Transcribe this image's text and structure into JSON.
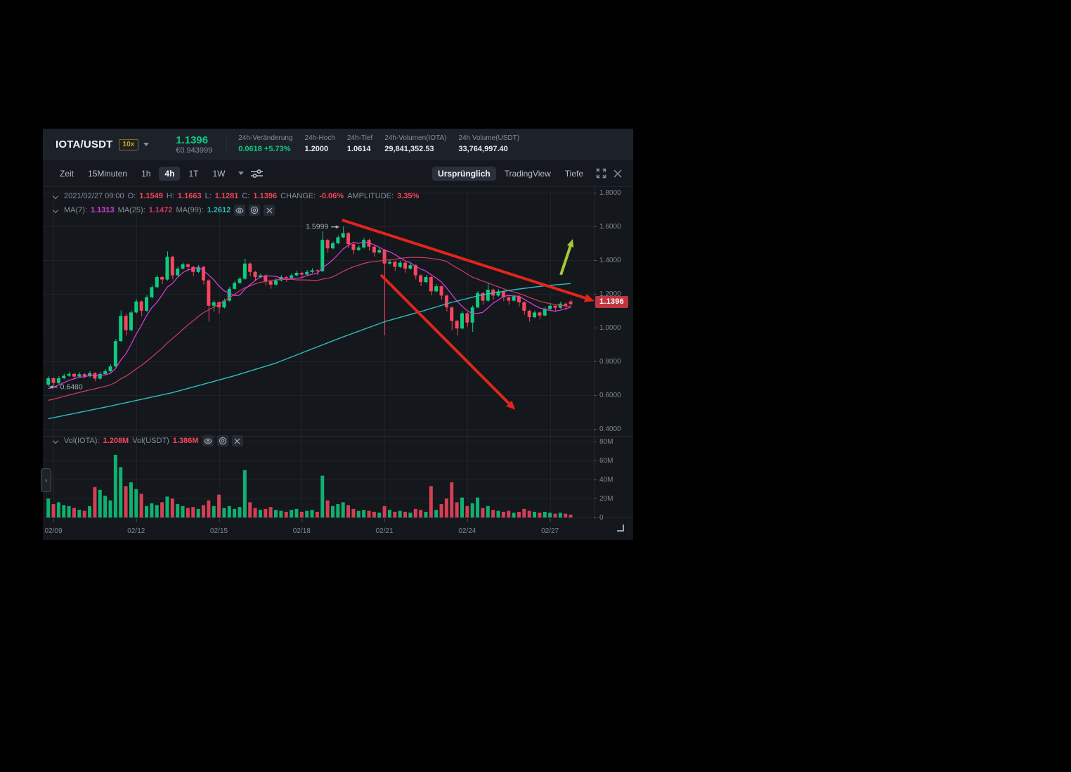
{
  "header": {
    "pair": "IOTA/USDT",
    "leverage": "10x",
    "last_price": "1.1396",
    "fiat_price": "€0.943999",
    "stats": [
      {
        "label": "24h-Veränderung",
        "value": "0.0618 +5.73%"
      },
      {
        "label": "24h-Hoch",
        "value": "1.2000"
      },
      {
        "label": "24h-Tief",
        "value": "1.0614"
      },
      {
        "label": "24h-Volumen(IOTA)",
        "value": "29,841,352.53"
      },
      {
        "label": "24h Volume(USDT)",
        "value": "33,764,997.40"
      }
    ]
  },
  "toolbar": {
    "timeframes": [
      {
        "label": "Zeit"
      },
      {
        "label": "15Minuten"
      },
      {
        "label": "1h"
      },
      {
        "label": "4h",
        "active": true
      },
      {
        "label": "1T"
      },
      {
        "label": "1W"
      }
    ],
    "views": [
      {
        "label": "Ursprünglich",
        "active": true
      },
      {
        "label": "TradingView"
      },
      {
        "label": "Tiefe"
      }
    ]
  },
  "info": {
    "date": "2021/02/27 09:00",
    "o_label": "O:",
    "o": "1.1549",
    "h_label": "H:",
    "h": "1.1663",
    "l_label": "L:",
    "l": "1.1281",
    "c_label": "C:",
    "c": "1.1396",
    "change_label": "CHANGE:",
    "change": "-0.06%",
    "amplitude_label": "AMPLITUDE:",
    "amplitude": "3.35%",
    "ma7_label": "MA(7):",
    "ma7": "1.1313",
    "ma25_label": "MA(25):",
    "ma25": "1.1472",
    "ma99_label": "MA(99):",
    "ma99": "1.2612",
    "vol_base_label": "Vol(IOTA):",
    "vol_base": "1.208M",
    "vol_quote_label": "Vol(USDT)",
    "vol_quote": "1.386M"
  },
  "price_tag": "1.1396",
  "colors": {
    "up": "#0ecb81",
    "down": "#f6465d",
    "ma7": "#e13ce1",
    "ma25": "#d23b64",
    "ma99": "#2dbdbd",
    "annotation_red": "#e2251b",
    "annotation_green": "#a3c838",
    "grid": "rgba(255,255,255,0.05)",
    "axis_text": "#7d8794",
    "tick": "#4a5260",
    "annotation_text": "#a4adb8"
  },
  "chart_data": {
    "type": "candlestick+volume",
    "pair": "IOTA/USDT",
    "timeframe": "4h",
    "y_axis": {
      "max": 1.8,
      "min": 0.4
    },
    "price_ticks": [
      1.8,
      1.6,
      1.4,
      1.2,
      1.0,
      0.8,
      0.6,
      0.4
    ],
    "volume_ticks": [
      80,
      60,
      40,
      20,
      0
    ],
    "x_labels": [
      "02/09",
      "02/12",
      "02/15",
      "02/18",
      "02/21",
      "02/24",
      "02/27"
    ],
    "x_label_indices": [
      1,
      17,
      33,
      49,
      65,
      81,
      97
    ],
    "candle_step": 7.36,
    "candle_width": 5,
    "last_price": 1.1396,
    "prehistory_closes": [
      0.5,
      0.505,
      0.51,
      0.515,
      0.52,
      0.525,
      0.53,
      0.535,
      0.54,
      0.545,
      0.55,
      0.555,
      0.56,
      0.565,
      0.57,
      0.575,
      0.58,
      0.59,
      0.6,
      0.61,
      0.62,
      0.63,
      0.645,
      0.655
    ],
    "ma_periods": {
      "ma7": 7,
      "ma25": 25
    },
    "ma99_anchors": [
      [
        0,
        0.46
      ],
      [
        12,
        0.535
      ],
      [
        24,
        0.615
      ],
      [
        36,
        0.715
      ],
      [
        44,
        0.79
      ],
      [
        50,
        0.862
      ],
      [
        57,
        0.945
      ],
      [
        65,
        1.035
      ],
      [
        72,
        1.095
      ],
      [
        78,
        1.15
      ],
      [
        84,
        1.195
      ],
      [
        90,
        1.225
      ],
      [
        96,
        1.248
      ],
      [
        101,
        1.2612
      ]
    ],
    "candles": [
      [
        0.662,
        0.712,
        0.65,
        0.7,
        20
      ],
      [
        0.7,
        0.706,
        0.648,
        0.672,
        14
      ],
      [
        0.672,
        0.712,
        0.666,
        0.7,
        16
      ],
      [
        0.7,
        0.727,
        0.694,
        0.715,
        13
      ],
      [
        0.715,
        0.738,
        0.709,
        0.726,
        12
      ],
      [
        0.726,
        0.732,
        0.698,
        0.71,
        10
      ],
      [
        0.71,
        0.736,
        0.704,
        0.724,
        8
      ],
      [
        0.724,
        0.73,
        0.7,
        0.712,
        7
      ],
      [
        0.712,
        0.742,
        0.706,
        0.73,
        12
      ],
      [
        0.73,
        0.736,
        0.682,
        0.698,
        32
      ],
      [
        0.698,
        0.738,
        0.692,
        0.726,
        29
      ],
      [
        0.726,
        0.754,
        0.72,
        0.742,
        23
      ],
      [
        0.742,
        0.782,
        0.736,
        0.77,
        18
      ],
      [
        0.77,
        0.932,
        0.764,
        0.92,
        66
      ],
      [
        0.92,
        1.102,
        0.914,
        1.07,
        53
      ],
      [
        1.07,
        1.082,
        0.952,
        0.985,
        33
      ],
      [
        0.985,
        1.102,
        0.979,
        1.09,
        37
      ],
      [
        1.09,
        1.167,
        1.084,
        1.155,
        30
      ],
      [
        1.155,
        1.161,
        1.066,
        1.1,
        25
      ],
      [
        1.1,
        1.192,
        1.094,
        1.18,
        12
      ],
      [
        1.18,
        1.252,
        1.174,
        1.24,
        15
      ],
      [
        1.24,
        1.312,
        1.234,
        1.3,
        13
      ],
      [
        1.3,
        1.306,
        1.259,
        1.285,
        16
      ],
      [
        1.285,
        1.452,
        1.279,
        1.42,
        22
      ],
      [
        1.42,
        1.426,
        1.286,
        1.31,
        20
      ],
      [
        1.31,
        1.362,
        1.304,
        1.35,
        14
      ],
      [
        1.35,
        1.387,
        1.344,
        1.375,
        12
      ],
      [
        1.375,
        1.381,
        1.336,
        1.36,
        10
      ],
      [
        1.36,
        1.366,
        1.306,
        1.33,
        11
      ],
      [
        1.33,
        1.372,
        1.324,
        1.36,
        9
      ],
      [
        1.36,
        1.366,
        1.256,
        1.28,
        13
      ],
      [
        1.28,
        1.286,
        1.035,
        1.13,
        18
      ],
      [
        1.13,
        1.162,
        1.095,
        1.15,
        12
      ],
      [
        1.15,
        1.156,
        1.085,
        1.12,
        24
      ],
      [
        1.12,
        1.172,
        1.114,
        1.16,
        10
      ],
      [
        1.16,
        1.242,
        1.154,
        1.23,
        12
      ],
      [
        1.23,
        1.277,
        1.224,
        1.265,
        9
      ],
      [
        1.265,
        1.302,
        1.259,
        1.29,
        11
      ],
      [
        1.29,
        1.41,
        1.284,
        1.38,
        50
      ],
      [
        1.38,
        1.386,
        1.306,
        1.33,
        16
      ],
      [
        1.33,
        1.336,
        1.276,
        1.3,
        10
      ],
      [
        1.3,
        1.322,
        1.294,
        1.31,
        8
      ],
      [
        1.31,
        1.316,
        1.251,
        1.275,
        9
      ],
      [
        1.275,
        1.281,
        1.231,
        1.255,
        11
      ],
      [
        1.255,
        1.292,
        1.249,
        1.28,
        8
      ],
      [
        1.28,
        1.312,
        1.274,
        1.3,
        7
      ],
      [
        1.3,
        1.306,
        1.271,
        1.295,
        6
      ],
      [
        1.295,
        1.322,
        1.289,
        1.31,
        8
      ],
      [
        1.31,
        1.337,
        1.304,
        1.325,
        9
      ],
      [
        1.325,
        1.331,
        1.291,
        1.315,
        6
      ],
      [
        1.315,
        1.342,
        1.309,
        1.33,
        7
      ],
      [
        1.33,
        1.352,
        1.324,
        1.34,
        8
      ],
      [
        1.34,
        1.346,
        1.311,
        1.335,
        6
      ],
      [
        1.335,
        1.571,
        1.329,
        1.52,
        44
      ],
      [
        1.52,
        1.526,
        1.446,
        1.47,
        18
      ],
      [
        1.47,
        1.512,
        1.464,
        1.5,
        12
      ],
      [
        1.5,
        1.547,
        1.494,
        1.535,
        14
      ],
      [
        1.535,
        1.5999,
        1.529,
        1.56,
        16
      ],
      [
        1.56,
        1.566,
        1.471,
        1.495,
        13
      ],
      [
        1.495,
        1.501,
        1.436,
        1.46,
        9
      ],
      [
        1.46,
        1.487,
        1.454,
        1.475,
        7
      ],
      [
        1.475,
        1.532,
        1.469,
        1.52,
        8
      ],
      [
        1.52,
        1.526,
        1.456,
        1.48,
        7
      ],
      [
        1.48,
        1.486,
        1.421,
        1.445,
        6
      ],
      [
        1.445,
        1.472,
        1.439,
        1.46,
        5
      ],
      [
        1.46,
        1.466,
        0.955,
        1.38,
        12
      ],
      [
        1.38,
        1.402,
        1.374,
        1.39,
        8
      ],
      [
        1.39,
        1.396,
        1.336,
        1.36,
        6
      ],
      [
        1.36,
        1.397,
        1.354,
        1.385,
        7
      ],
      [
        1.385,
        1.391,
        1.326,
        1.35,
        6
      ],
      [
        1.35,
        1.382,
        1.344,
        1.37,
        5
      ],
      [
        1.37,
        1.376,
        1.286,
        1.31,
        9
      ],
      [
        1.31,
        1.316,
        1.246,
        1.27,
        8
      ],
      [
        1.27,
        1.312,
        1.264,
        1.3,
        6
      ],
      [
        1.3,
        1.306,
        1.191,
        1.215,
        33
      ],
      [
        1.215,
        1.257,
        1.209,
        1.245,
        8
      ],
      [
        1.245,
        1.251,
        1.166,
        1.19,
        14
      ],
      [
        1.19,
        1.196,
        1.096,
        1.12,
        20
      ],
      [
        1.12,
        1.126,
        0.985,
        1.04,
        37
      ],
      [
        1.04,
        1.046,
        0.952,
        0.995,
        16
      ],
      [
        0.995,
        1.097,
        0.989,
        1.085,
        21
      ],
      [
        1.085,
        1.091,
        1.006,
        1.03,
        12
      ],
      [
        1.03,
        1.132,
        0.975,
        1.12,
        15
      ],
      [
        1.12,
        1.217,
        1.114,
        1.205,
        21
      ],
      [
        1.205,
        1.211,
        1.136,
        1.16,
        10
      ],
      [
        1.16,
        1.265,
        1.154,
        1.225,
        12
      ],
      [
        1.225,
        1.231,
        1.166,
        1.19,
        8
      ],
      [
        1.19,
        1.227,
        1.184,
        1.215,
        7
      ],
      [
        1.215,
        1.221,
        1.156,
        1.18,
        6
      ],
      [
        1.18,
        1.186,
        1.136,
        1.16,
        7
      ],
      [
        1.16,
        1.197,
        1.154,
        1.185,
        5
      ],
      [
        1.185,
        1.191,
        1.126,
        1.15,
        6
      ],
      [
        1.15,
        1.156,
        1.076,
        1.1,
        9
      ],
      [
        1.1,
        1.106,
        1.035,
        1.062,
        7
      ],
      [
        1.062,
        1.102,
        1.056,
        1.09,
        6
      ],
      [
        1.09,
        1.096,
        1.048,
        1.072,
        5
      ],
      [
        1.072,
        1.122,
        1.066,
        1.11,
        6
      ],
      [
        1.11,
        1.142,
        1.104,
        1.13,
        5
      ],
      [
        1.13,
        1.136,
        1.094,
        1.118,
        4
      ],
      [
        1.118,
        1.154,
        1.112,
        1.142,
        5
      ],
      [
        1.142,
        1.148,
        1.104,
        1.128,
        4
      ],
      [
        1.1549,
        1.1663,
        1.1281,
        1.1396,
        3
      ]
    ],
    "annotations": [
      {
        "type": "trend-arrow",
        "color": "#e2251b",
        "width": 4,
        "head": 15,
        "from": {
          "i": 56.8,
          "p": 1.638
        },
        "to": {
          "i": 105.6,
          "p": 1.158
        }
      },
      {
        "type": "trend-arrow",
        "color": "#e2251b",
        "width": 4,
        "head": 14,
        "from": {
          "i": 64.3,
          "p": 1.313
        },
        "to": {
          "i": 90.3,
          "p": 0.513
        }
      },
      {
        "type": "trend-arrow",
        "color": "#a3c838",
        "width": 4,
        "head": 12,
        "from": {
          "i": 99.1,
          "p": 1.313
        },
        "to": {
          "i": 101.4,
          "p": 1.525
        }
      },
      {
        "type": "label-right-arrow",
        "text": "1.5999",
        "i": 56.6,
        "p": 1.597
      },
      {
        "type": "label-left-arrow",
        "text": "0.6480",
        "i": 0.4,
        "p": 0.648
      }
    ]
  }
}
